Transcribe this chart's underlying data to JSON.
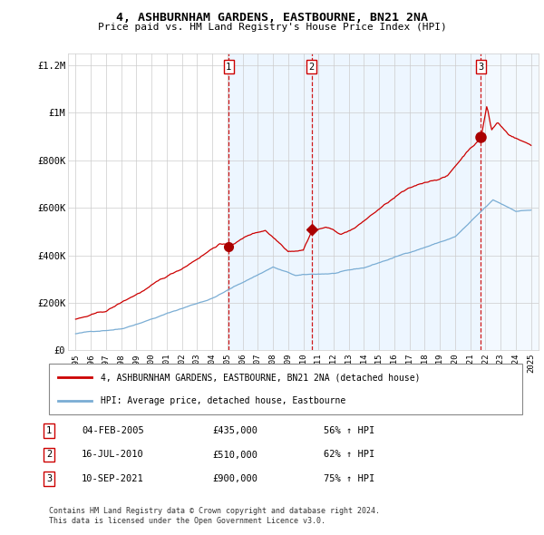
{
  "title": "4, ASHBURNHAM GARDENS, EASTBOURNE, BN21 2NA",
  "subtitle": "Price paid vs. HM Land Registry's House Price Index (HPI)",
  "legend_line1": "4, ASHBURNHAM GARDENS, EASTBOURNE, BN21 2NA (detached house)",
  "legend_line2": "HPI: Average price, detached house, Eastbourne",
  "footer1": "Contains HM Land Registry data © Crown copyright and database right 2024.",
  "footer2": "This data is licensed under the Open Government Licence v3.0.",
  "sale_points": [
    {
      "label": "1",
      "date": "04-FEB-2005",
      "price": 435000,
      "x": 2005.09,
      "hpi_pct": "56%"
    },
    {
      "label": "2",
      "date": "16-JUL-2010",
      "price": 510000,
      "x": 2010.54,
      "hpi_pct": "62%"
    },
    {
      "label": "3",
      "date": "10-SEP-2021",
      "price": 900000,
      "x": 2021.7,
      "hpi_pct": "75%"
    }
  ],
  "table_rows": [
    [
      "1",
      "04-FEB-2005",
      "£435,000",
      "56% ↑ HPI"
    ],
    [
      "2",
      "16-JUL-2010",
      "£510,000",
      "62% ↑ HPI"
    ],
    [
      "3",
      "10-SEP-2021",
      "£900,000",
      "75% ↑ HPI"
    ]
  ],
  "line_color_red": "#cc0000",
  "line_color_blue": "#7aadd4",
  "sale_dot_color": "#aa0000",
  "vline_color": "#cc0000",
  "shade_color": "#ddeeff",
  "grid_color": "#cccccc",
  "ylim": [
    0,
    1250000
  ],
  "xlim": [
    1994.5,
    2025.5
  ],
  "yticks": [
    0,
    200000,
    400000,
    600000,
    800000,
    1000000,
    1200000
  ],
  "ytick_labels": [
    "£0",
    "£200K",
    "£400K",
    "£600K",
    "£800K",
    "£1M",
    "£1.2M"
  ],
  "xticks": [
    1995,
    1996,
    1997,
    1998,
    1999,
    2000,
    2001,
    2002,
    2003,
    2004,
    2005,
    2006,
    2007,
    2008,
    2009,
    2010,
    2011,
    2012,
    2013,
    2014,
    2015,
    2016,
    2017,
    2018,
    2019,
    2020,
    2021,
    2022,
    2023,
    2024,
    2025
  ]
}
